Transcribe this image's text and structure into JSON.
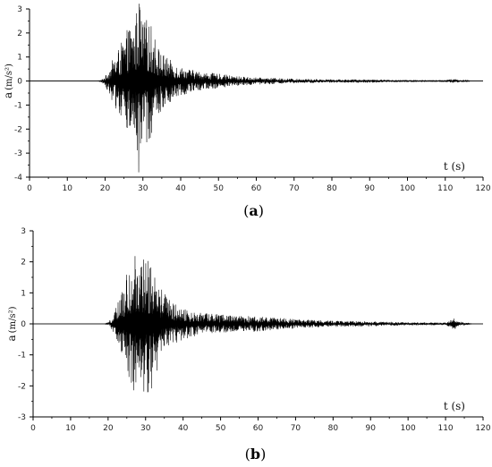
{
  "chart_data": [
    {
      "type": "line",
      "panel_label": "(a)",
      "panel_letter": "a",
      "xlabel": "t (s)",
      "ylabel_main": "a",
      "ylabel_unit": "(m/s²)",
      "xlim": [
        0,
        120
      ],
      "ylim": [
        -4,
        3
      ],
      "xticks": [
        0,
        10,
        20,
        30,
        40,
        50,
        60,
        70,
        80,
        90,
        100,
        110,
        120
      ],
      "yticks": [
        -4,
        -3,
        -2,
        -1,
        0,
        1,
        2,
        3
      ],
      "grid": false,
      "series": [
        {
          "color": "#000000",
          "envelope": [
            [
              0,
              0
            ],
            [
              18,
              0
            ],
            [
              19,
              0.05
            ],
            [
              20,
              0.2
            ],
            [
              21,
              0.5
            ],
            [
              22,
              0.9
            ],
            [
              23,
              1.2
            ],
            [
              24,
              1.5
            ],
            [
              25,
              1.8
            ],
            [
              26,
              2.2
            ],
            [
              27,
              2.4
            ],
            [
              28,
              2.5
            ],
            [
              28.8,
              3.8
            ],
            [
              29.5,
              2.8
            ],
            [
              30,
              2.5
            ],
            [
              31,
              2.6
            ],
            [
              32,
              2.4
            ],
            [
              33,
              2.0
            ],
            [
              34,
              1.5
            ],
            [
              35,
              1.2
            ],
            [
              37,
              0.9
            ],
            [
              40,
              0.6
            ],
            [
              45,
              0.4
            ],
            [
              50,
              0.3
            ],
            [
              55,
              0.2
            ],
            [
              60,
              0.15
            ],
            [
              70,
              0.1
            ],
            [
              80,
              0.07
            ],
            [
              90,
              0.07
            ],
            [
              95,
              0.05
            ],
            [
              105,
              0.03
            ],
            [
              110,
              0.04
            ],
            [
              112.5,
              0.1
            ],
            [
              113,
              0.08
            ],
            [
              114,
              0.04
            ],
            [
              116,
              0.02
            ],
            [
              117,
              0
            ],
            [
              120,
              0
            ]
          ]
        }
      ]
    },
    {
      "type": "line",
      "panel_label": "(b)",
      "panel_letter": "b",
      "xlabel": "t (s)",
      "ylabel_main": "a",
      "ylabel_unit": "(m/s²)",
      "xlim": [
        0,
        120
      ],
      "ylim": [
        -3,
        3
      ],
      "xticks": [
        0,
        10,
        20,
        30,
        40,
        50,
        60,
        70,
        80,
        90,
        100,
        110,
        120
      ],
      "yticks": [
        -3,
        -2,
        -1,
        0,
        1,
        2,
        3
      ],
      "grid": false,
      "series": [
        {
          "color": "#000000",
          "envelope": [
            [
              0,
              0
            ],
            [
              19,
              0
            ],
            [
              20,
              0.05
            ],
            [
              21,
              0.2
            ],
            [
              22,
              0.5
            ],
            [
              23,
              0.8
            ],
            [
              24,
              1.2
            ],
            [
              25,
              1.6
            ],
            [
              26,
              1.9
            ],
            [
              27,
              2.4
            ],
            [
              28,
              2.6
            ],
            [
              29,
              2.4
            ],
            [
              30,
              2.3
            ],
            [
              31,
              2.2
            ],
            [
              32,
              2.0
            ],
            [
              33,
              1.6
            ],
            [
              34,
              1.2
            ],
            [
              36,
              0.8
            ],
            [
              40,
              0.5
            ],
            [
              45,
              0.35
            ],
            [
              50,
              0.3
            ],
            [
              55,
              0.25
            ],
            [
              60,
              0.25
            ],
            [
              70,
              0.15
            ],
            [
              80,
              0.1
            ],
            [
              90,
              0.08
            ],
            [
              100,
              0.05
            ],
            [
              110,
              0.04
            ],
            [
              112.5,
              0.2
            ],
            [
              113.5,
              0.08
            ],
            [
              116,
              0.03
            ],
            [
              117,
              0
            ],
            [
              120,
              0
            ]
          ]
        }
      ]
    }
  ]
}
